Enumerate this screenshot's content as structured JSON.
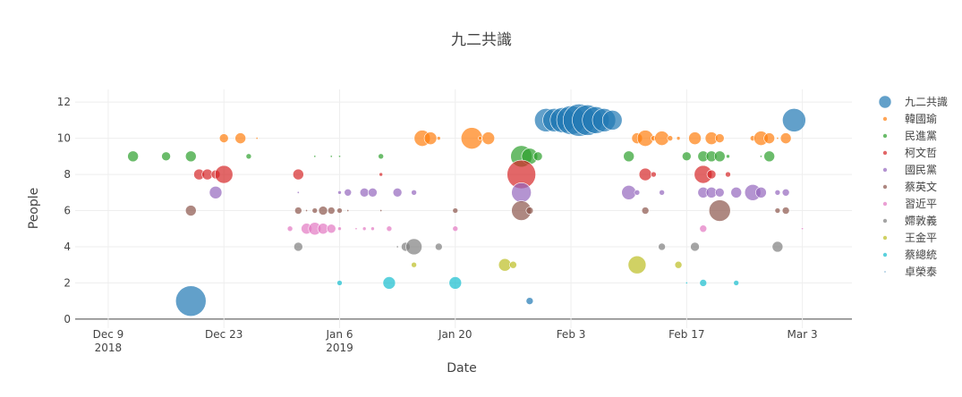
{
  "chart_data": {
    "type": "scatter",
    "title": "九二共識",
    "xlabel": "Date",
    "ylabel": "People",
    "xlim": [
      "2018-12-05",
      "2019-03-09"
    ],
    "ylim": [
      -0.5,
      12.7
    ],
    "x_ticks": [
      {
        "date": "2018-12-09",
        "line1": "Dec 9",
        "line2": "2018"
      },
      {
        "date": "2018-12-23",
        "line1": "Dec 23",
        "line2": ""
      },
      {
        "date": "2019-01-06",
        "line1": "Jan 6",
        "line2": "2019"
      },
      {
        "date": "2019-01-20",
        "line1": "Jan 20",
        "line2": ""
      },
      {
        "date": "2019-02-03",
        "line1": "Feb 3",
        "line2": ""
      },
      {
        "date": "2019-02-17",
        "line1": "Feb 17",
        "line2": ""
      },
      {
        "date": "2019-03-03",
        "line1": "Mar 3",
        "line2": ""
      }
    ],
    "y_ticks": [
      0,
      2,
      4,
      6,
      8,
      10,
      12
    ],
    "grid": true,
    "legend_position": "right",
    "series": [
      {
        "name": "九二共識",
        "color": "#1f77b4",
        "points": [
          {
            "x": "2018-12-19",
            "y": 1,
            "size": 17
          },
          {
            "x": "2019-01-29",
            "y": 1,
            "size": 4
          },
          {
            "x": "2019-01-31",
            "y": 11,
            "size": 13
          },
          {
            "x": "2019-02-01",
            "y": 11,
            "size": 13
          },
          {
            "x": "2019-02-02",
            "y": 11,
            "size": 14
          },
          {
            "x": "2019-02-03",
            "y": 11,
            "size": 16
          },
          {
            "x": "2019-02-04",
            "y": 11,
            "size": 18
          },
          {
            "x": "2019-02-05",
            "y": 11,
            "size": 17
          },
          {
            "x": "2019-02-06",
            "y": 11,
            "size": 15
          },
          {
            "x": "2019-02-07",
            "y": 11,
            "size": 13
          },
          {
            "x": "2019-02-08",
            "y": 11,
            "size": 11
          },
          {
            "x": "2019-03-02",
            "y": 11,
            "size": 13
          }
        ]
      },
      {
        "name": "韓國瑜",
        "color": "#ff7f0e",
        "points": [
          {
            "x": "2018-12-23",
            "y": 10,
            "size": 5
          },
          {
            "x": "2018-12-25",
            "y": 10,
            "size": 6
          },
          {
            "x": "2018-12-27",
            "y": 10,
            "size": 1
          },
          {
            "x": "2019-01-16",
            "y": 10,
            "size": 9
          },
          {
            "x": "2019-01-17",
            "y": 10,
            "size": 7
          },
          {
            "x": "2019-01-18",
            "y": 10,
            "size": 2
          },
          {
            "x": "2019-01-22",
            "y": 10,
            "size": 12
          },
          {
            "x": "2019-01-23",
            "y": 10,
            "size": 2
          },
          {
            "x": "2019-01-24",
            "y": 10,
            "size": 7
          },
          {
            "x": "2019-02-11",
            "y": 10,
            "size": 6
          },
          {
            "x": "2019-02-12",
            "y": 10,
            "size": 9
          },
          {
            "x": "2019-02-13",
            "y": 10,
            "size": 3
          },
          {
            "x": "2019-02-14",
            "y": 10,
            "size": 8
          },
          {
            "x": "2019-02-15",
            "y": 10,
            "size": 3
          },
          {
            "x": "2019-02-16",
            "y": 10,
            "size": 2
          },
          {
            "x": "2019-02-18",
            "y": 10,
            "size": 7
          },
          {
            "x": "2019-02-20",
            "y": 10,
            "size": 7
          },
          {
            "x": "2019-02-21",
            "y": 10,
            "size": 5
          },
          {
            "x": "2019-02-25",
            "y": 10,
            "size": 3
          },
          {
            "x": "2019-02-26",
            "y": 10,
            "size": 8
          },
          {
            "x": "2019-02-27",
            "y": 10,
            "size": 6
          },
          {
            "x": "2019-02-28",
            "y": 10,
            "size": 1
          },
          {
            "x": "2019-03-01",
            "y": 10,
            "size": 6
          }
        ]
      },
      {
        "name": "民進黨",
        "color": "#2ca02c",
        "points": [
          {
            "x": "2018-12-12",
            "y": 9,
            "size": 6
          },
          {
            "x": "2018-12-16",
            "y": 9,
            "size": 5
          },
          {
            "x": "2018-12-19",
            "y": 9,
            "size": 6
          },
          {
            "x": "2018-12-26",
            "y": 9,
            "size": 3
          },
          {
            "x": "2019-01-03",
            "y": 9,
            "size": 1
          },
          {
            "x": "2019-01-05",
            "y": 9,
            "size": 1
          },
          {
            "x": "2019-01-06",
            "y": 9,
            "size": 1
          },
          {
            "x": "2019-01-11",
            "y": 9,
            "size": 3
          },
          {
            "x": "2019-01-28",
            "y": 9,
            "size": 12
          },
          {
            "x": "2019-01-29",
            "y": 9,
            "size": 9
          },
          {
            "x": "2019-01-30",
            "y": 9,
            "size": 5
          },
          {
            "x": "2019-02-10",
            "y": 9,
            "size": 6
          },
          {
            "x": "2019-02-17",
            "y": 9,
            "size": 5
          },
          {
            "x": "2019-02-19",
            "y": 9,
            "size": 6
          },
          {
            "x": "2019-02-20",
            "y": 9,
            "size": 6
          },
          {
            "x": "2019-02-21",
            "y": 9,
            "size": 6
          },
          {
            "x": "2019-02-22",
            "y": 9,
            "size": 2
          },
          {
            "x": "2019-02-26",
            "y": 9,
            "size": 1
          },
          {
            "x": "2019-02-27",
            "y": 9,
            "size": 6
          }
        ]
      },
      {
        "name": "柯文哲",
        "color": "#d62728",
        "points": [
          {
            "x": "2018-12-20",
            "y": 8,
            "size": 6
          },
          {
            "x": "2018-12-21",
            "y": 8,
            "size": 6
          },
          {
            "x": "2018-12-22",
            "y": 8,
            "size": 5
          },
          {
            "x": "2018-12-23",
            "y": 8,
            "size": 10
          },
          {
            "x": "2019-01-01",
            "y": 8,
            "size": 6
          },
          {
            "x": "2019-01-11",
            "y": 8,
            "size": 2
          },
          {
            "x": "2019-01-28",
            "y": 8,
            "size": 16
          },
          {
            "x": "2019-02-12",
            "y": 8,
            "size": 7
          },
          {
            "x": "2019-02-13",
            "y": 8,
            "size": 3
          },
          {
            "x": "2019-02-19",
            "y": 8,
            "size": 10
          },
          {
            "x": "2019-02-20",
            "y": 8,
            "size": 5
          },
          {
            "x": "2019-02-22",
            "y": 8,
            "size": 3
          }
        ]
      },
      {
        "name": "國民黨",
        "color": "#9467bd",
        "points": [
          {
            "x": "2018-12-22",
            "y": 7,
            "size": 7
          },
          {
            "x": "2019-01-01",
            "y": 7,
            "size": 1
          },
          {
            "x": "2019-01-06",
            "y": 7,
            "size": 2
          },
          {
            "x": "2019-01-07",
            "y": 7,
            "size": 4
          },
          {
            "x": "2019-01-09",
            "y": 7,
            "size": 5
          },
          {
            "x": "2019-01-10",
            "y": 7,
            "size": 5
          },
          {
            "x": "2019-01-13",
            "y": 7,
            "size": 5
          },
          {
            "x": "2019-01-15",
            "y": 7,
            "size": 3
          },
          {
            "x": "2019-01-28",
            "y": 7,
            "size": 11
          },
          {
            "x": "2019-02-10",
            "y": 7,
            "size": 8
          },
          {
            "x": "2019-02-11",
            "y": 7,
            "size": 3
          },
          {
            "x": "2019-02-14",
            "y": 7,
            "size": 3
          },
          {
            "x": "2019-02-19",
            "y": 7,
            "size": 6
          },
          {
            "x": "2019-02-20",
            "y": 7,
            "size": 6
          },
          {
            "x": "2019-02-21",
            "y": 7,
            "size": 5
          },
          {
            "x": "2019-02-23",
            "y": 7,
            "size": 6
          },
          {
            "x": "2019-02-25",
            "y": 7,
            "size": 9
          },
          {
            "x": "2019-02-26",
            "y": 7,
            "size": 6
          },
          {
            "x": "2019-02-28",
            "y": 7,
            "size": 3
          },
          {
            "x": "2019-03-01",
            "y": 7,
            "size": 4
          }
        ]
      },
      {
        "name": "蔡英文",
        "color": "#8c564b",
        "points": [
          {
            "x": "2018-12-19",
            "y": 6,
            "size": 6
          },
          {
            "x": "2019-01-01",
            "y": 6,
            "size": 4
          },
          {
            "x": "2019-01-02",
            "y": 6,
            "size": 1
          },
          {
            "x": "2019-01-03",
            "y": 6,
            "size": 3
          },
          {
            "x": "2019-01-04",
            "y": 6,
            "size": 5
          },
          {
            "x": "2019-01-05",
            "y": 6,
            "size": 4
          },
          {
            "x": "2019-01-06",
            "y": 6,
            "size": 3
          },
          {
            "x": "2019-01-07",
            "y": 6,
            "size": 1
          },
          {
            "x": "2019-01-11",
            "y": 6,
            "size": 1
          },
          {
            "x": "2019-01-20",
            "y": 6,
            "size": 3
          },
          {
            "x": "2019-01-28",
            "y": 6,
            "size": 11
          },
          {
            "x": "2019-01-29",
            "y": 6,
            "size": 4
          },
          {
            "x": "2019-02-12",
            "y": 6,
            "size": 4
          },
          {
            "x": "2019-02-21",
            "y": 6,
            "size": 12
          },
          {
            "x": "2019-02-28",
            "y": 6,
            "size": 3
          },
          {
            "x": "2019-03-01",
            "y": 6,
            "size": 4
          }
        ]
      },
      {
        "name": "習近平",
        "color": "#e377c2",
        "points": [
          {
            "x": "2018-12-31",
            "y": 5,
            "size": 3
          },
          {
            "x": "2019-01-02",
            "y": 5,
            "size": 6
          },
          {
            "x": "2019-01-03",
            "y": 5,
            "size": 7
          },
          {
            "x": "2019-01-04",
            "y": 5,
            "size": 6
          },
          {
            "x": "2019-01-05",
            "y": 5,
            "size": 5
          },
          {
            "x": "2019-01-06",
            "y": 5,
            "size": 2
          },
          {
            "x": "2019-01-08",
            "y": 5,
            "size": 1
          },
          {
            "x": "2019-01-09",
            "y": 5,
            "size": 2
          },
          {
            "x": "2019-01-10",
            "y": 5,
            "size": 2
          },
          {
            "x": "2019-01-12",
            "y": 5,
            "size": 3
          },
          {
            "x": "2019-01-20",
            "y": 5,
            "size": 3
          },
          {
            "x": "2019-02-19",
            "y": 5,
            "size": 4
          },
          {
            "x": "2019-03-03",
            "y": 5,
            "size": 1
          }
        ]
      },
      {
        "name": "𡠹敦義",
        "color": "#7f7f7f",
        "points": [
          {
            "x": "2019-01-01",
            "y": 4,
            "size": 5
          },
          {
            "x": "2019-01-13",
            "y": 4,
            "size": 1
          },
          {
            "x": "2019-01-14",
            "y": 4,
            "size": 5
          },
          {
            "x": "2019-01-15",
            "y": 4,
            "size": 9
          },
          {
            "x": "2019-01-18",
            "y": 4,
            "size": 4
          },
          {
            "x": "2019-02-14",
            "y": 4,
            "size": 4
          },
          {
            "x": "2019-02-18",
            "y": 4,
            "size": 5
          },
          {
            "x": "2019-02-28",
            "y": 4,
            "size": 6
          }
        ]
      },
      {
        "name": "王金平",
        "color": "#bcbd22",
        "points": [
          {
            "x": "2019-01-15",
            "y": 3,
            "size": 3
          },
          {
            "x": "2019-01-26",
            "y": 3,
            "size": 7
          },
          {
            "x": "2019-01-27",
            "y": 3,
            "size": 4
          },
          {
            "x": "2019-02-11",
            "y": 3,
            "size": 10
          },
          {
            "x": "2019-02-16",
            "y": 3,
            "size": 4
          }
        ]
      },
      {
        "name": "蔡總統",
        "color": "#17becf",
        "points": [
          {
            "x": "2019-01-06",
            "y": 2,
            "size": 3
          },
          {
            "x": "2019-01-12",
            "y": 2,
            "size": 7
          },
          {
            "x": "2019-01-20",
            "y": 2,
            "size": 7
          },
          {
            "x": "2019-02-17",
            "y": 2,
            "size": 1
          },
          {
            "x": "2019-02-19",
            "y": 2,
            "size": 4
          },
          {
            "x": "2019-02-23",
            "y": 2,
            "size": 3
          }
        ]
      },
      {
        "name": "卓榮泰",
        "color": "#1f77b4",
        "points": []
      }
    ]
  }
}
